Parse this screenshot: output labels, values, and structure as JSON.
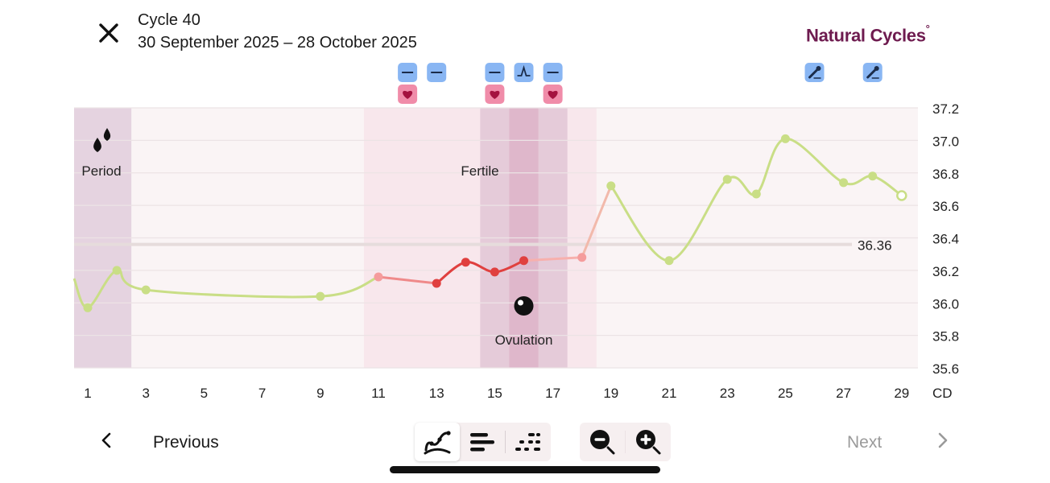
{
  "header": {
    "title": "Cycle 40",
    "date_range": "30 September 2025 – 28 October 2025",
    "brand_name": "Natural Cycles",
    "brand_mark": "°",
    "close_icon": "close-icon"
  },
  "colors": {
    "period_band": "#e5d3e0",
    "fertile_band": "#f8e7ec",
    "fertile_dark_band": "#e5cbd9",
    "ovulation_band": "#dfb7cb",
    "green_line": "#c9de86",
    "red_line": "#e0403f",
    "pink_point": "#f59c9c",
    "coverline": "#e6dcdc",
    "brand": "#6e1b4f",
    "marker_blue": "#89b6f3",
    "marker_pink": "#f08ca9"
  },
  "chart_data": {
    "type": "line",
    "x_unit_label": "CD",
    "xlim": [
      1,
      29
    ],
    "ylim": [
      35.6,
      37.2
    ],
    "x_ticks": [
      1,
      3,
      5,
      7,
      9,
      11,
      13,
      15,
      17,
      19,
      21,
      23,
      25,
      27,
      29
    ],
    "y_ticks": [
      "37.2",
      "37.0",
      "36.8",
      "36.6",
      "36.4",
      "36.2",
      "36.0",
      "35.8",
      "35.6"
    ],
    "coverline": {
      "value": 36.36,
      "label": "36.36"
    },
    "bands": [
      {
        "name": "period",
        "from": 1,
        "to": 2,
        "label": "Period",
        "icon": "drops-icon"
      },
      {
        "name": "fertile",
        "from": 11,
        "to": 18,
        "label": "Fertile"
      },
      {
        "name": "fertile-peak",
        "from": 15,
        "to": 17,
        "label": ""
      },
      {
        "name": "ovulation",
        "from": 16,
        "to": 16,
        "label": "Ovulation",
        "icon": "ovulation-icon"
      }
    ],
    "points": [
      {
        "x": 1,
        "y": 35.97,
        "state": "green"
      },
      {
        "x": 2,
        "y": 36.2,
        "state": "green"
      },
      {
        "x": 3,
        "y": 36.08,
        "state": "green"
      },
      {
        "x": 9,
        "y": 36.04,
        "state": "green"
      },
      {
        "x": 11,
        "y": 36.16,
        "state": "pink"
      },
      {
        "x": 13,
        "y": 36.12,
        "state": "red"
      },
      {
        "x": 14,
        "y": 36.25,
        "state": "red"
      },
      {
        "x": 15,
        "y": 36.19,
        "state": "red"
      },
      {
        "x": 16,
        "y": 36.26,
        "state": "red"
      },
      {
        "x": 18,
        "y": 36.28,
        "state": "pink"
      },
      {
        "x": 19,
        "y": 36.72,
        "state": "green"
      },
      {
        "x": 21,
        "y": 36.26,
        "state": "green"
      },
      {
        "x": 23,
        "y": 36.76,
        "state": "green"
      },
      {
        "x": 24,
        "y": 36.67,
        "state": "green"
      },
      {
        "x": 25,
        "y": 37.01,
        "state": "green"
      },
      {
        "x": 27,
        "y": 36.74,
        "state": "green"
      },
      {
        "x": 28,
        "y": 36.78,
        "state": "green"
      },
      {
        "x": 29,
        "y": 36.66,
        "state": "open"
      }
    ],
    "markers": [
      {
        "x": 12,
        "row": 0,
        "icon": "dash-icon"
      },
      {
        "x": 12,
        "row": 1,
        "icon": "heart-icon"
      },
      {
        "x": 13,
        "row": 0,
        "icon": "dash-icon"
      },
      {
        "x": 15,
        "row": 0,
        "icon": "dash-icon"
      },
      {
        "x": 15,
        "row": 1,
        "icon": "heart-icon"
      },
      {
        "x": 16,
        "row": 0,
        "icon": "lh-test-icon"
      },
      {
        "x": 17,
        "row": 0,
        "icon": "dash-icon"
      },
      {
        "x": 17,
        "row": 1,
        "icon": "heart-icon"
      },
      {
        "x": 26,
        "row": 0,
        "icon": "pipette-icon"
      },
      {
        "x": 28,
        "row": 0,
        "icon": "pipette-icon"
      }
    ]
  },
  "footer": {
    "previous_label": "Previous",
    "next_label": "Next",
    "view_icons": [
      "temperature-graph-icon",
      "bars-icon",
      "dots-icon"
    ],
    "zoom_icons": [
      "zoom-out-icon",
      "zoom-in-icon"
    ]
  }
}
